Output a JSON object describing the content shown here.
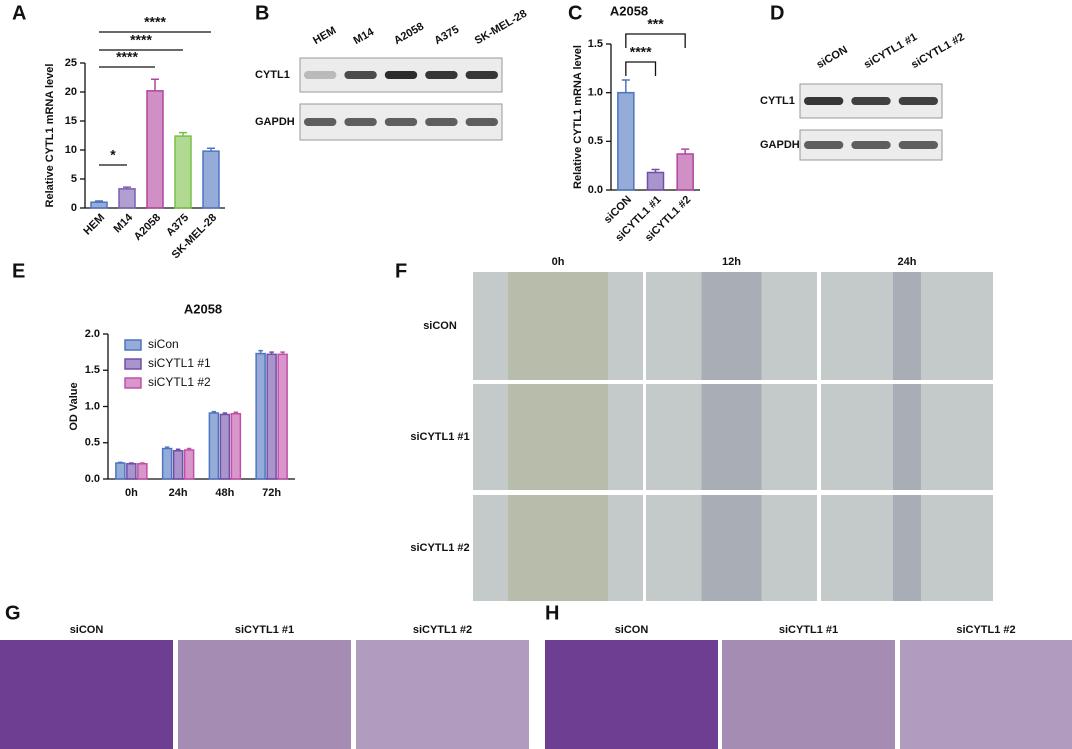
{
  "chart_data": [
    {
      "type": "bar",
      "y_label": "Relative CYTL1 mRNA level",
      "categories": [
        "HEM",
        "M14",
        "A2058",
        "A375",
        "SK-MEL-28"
      ],
      "values": [
        1.0,
        3.3,
        20.2,
        12.4,
        9.8
      ],
      "errors": [
        0.2,
        0.3,
        2.0,
        0.6,
        0.5
      ],
      "colors": [
        "#4f74c0",
        "#7b5fb0",
        "#b1469e",
        "#7bbf4a",
        "#4f74c0"
      ],
      "ylim": [
        0,
        25
      ],
      "yticks": [
        0,
        5,
        10,
        15,
        20,
        25
      ],
      "annotations": [
        "*",
        "****",
        "****",
        "****"
      ]
    },
    {
      "type": "bar",
      "title": "A2058",
      "y_label": "Relative CYTL1 mRNA level",
      "categories": [
        "siCON",
        "siCYTL1 #1",
        "siCYTL1 #2"
      ],
      "values": [
        1.0,
        0.18,
        0.37
      ],
      "errors": [
        0.13,
        0.03,
        0.05
      ],
      "colors": [
        "#4f74c0",
        "#6f4fa8",
        "#b1469e"
      ],
      "ylim": [
        0,
        1.5
      ],
      "yticks": [
        {
          "value": 0,
          "label": "0.0"
        },
        0.5,
        {
          "value": 1,
          "label": "1.0"
        },
        1.5
      ],
      "annotations": [
        "****",
        "***"
      ]
    },
    {
      "type": "grouped_bar",
      "title": "A2058",
      "y_label": "OD Value",
      "categories": [
        "0h",
        "24h",
        "48h",
        "72h"
      ],
      "series": [
        {
          "name": "siCon",
          "color": "#4f74c0",
          "values": [
            0.22,
            0.42,
            0.91,
            1.73
          ],
          "errors": [
            0.01,
            0.02,
            0.02,
            0.04
          ]
        },
        {
          "name": "siCYTL1 #1",
          "color": "#6f4fa8",
          "values": [
            0.21,
            0.39,
            0.89,
            1.72
          ],
          "errors": [
            0.01,
            0.02,
            0.02,
            0.03
          ]
        },
        {
          "name": "siCYTL1 #2",
          "color": "#c050a8",
          "values": [
            0.21,
            0.4,
            0.9,
            1.72
          ],
          "errors": [
            0.01,
            0.02,
            0.02,
            0.03
          ]
        }
      ],
      "ylim": [
        0,
        2.0
      ],
      "yticks": [
        {
          "value": 0,
          "label": "0.0"
        },
        0.5,
        {
          "value": 1,
          "label": "1.0"
        },
        1.5,
        {
          "value": 2,
          "label": "2.0"
        }
      ],
      "legend": "upper left"
    }
  ],
  "panel_labels": [
    "A",
    "B",
    "C",
    "D",
    "E",
    "F",
    "G",
    "H"
  ],
  "blot_b": {
    "lanes": [
      "HEM",
      "M14",
      "A2058",
      "A375",
      "SK-MEL-28"
    ],
    "rows": [
      "CYTL1",
      "GAPDH"
    ]
  },
  "blot_d": {
    "lanes": [
      "siCON",
      "siCYTL1 #1",
      "siCYTL1 #2"
    ],
    "rows": [
      "CYTL1",
      "GAPDH"
    ]
  },
  "wound": {
    "times": [
      "0h",
      "12h",
      "24h"
    ],
    "rows": [
      "siCON",
      "siCYTL1 #1",
      "siCYTL1 #2"
    ]
  },
  "transwell_g": [
    "siCON",
    "siCYTL1 #1",
    "siCYTL1 #2"
  ],
  "transwell_h": [
    "siCON",
    "siCYTL1 #1",
    "siCYTL1 #2"
  ]
}
